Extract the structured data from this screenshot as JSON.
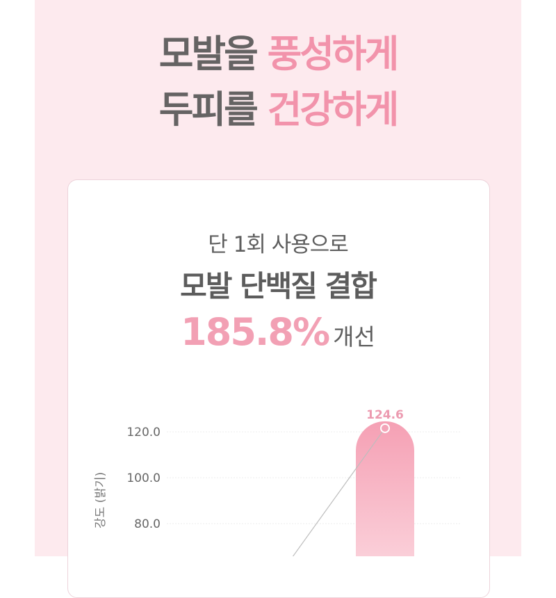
{
  "headline": {
    "line1": {
      "gray": "모발을",
      "pink": "풍성하게"
    },
    "line2": {
      "gray": "두피를",
      "pink": "건강하게"
    }
  },
  "card": {
    "subtitle": "단 1회 사용으로",
    "title": "모발 단백질 결합",
    "stat_value": "185.8%",
    "stat_word": "개선"
  },
  "colors": {
    "accent": "#f293ab",
    "text": "#5e5e5e",
    "panel": "#fdeaee"
  },
  "chart_data": {
    "type": "bar",
    "ylabel": "강도 (밝기)",
    "yticks": [
      "80.0",
      "100.0",
      "120.0"
    ],
    "ylim_visible": [
      80,
      124.6
    ],
    "grid": true,
    "series": [
      {
        "values": [
          124.6
        ],
        "labels": [
          "124.6"
        ]
      }
    ],
    "overlay_line": true
  }
}
